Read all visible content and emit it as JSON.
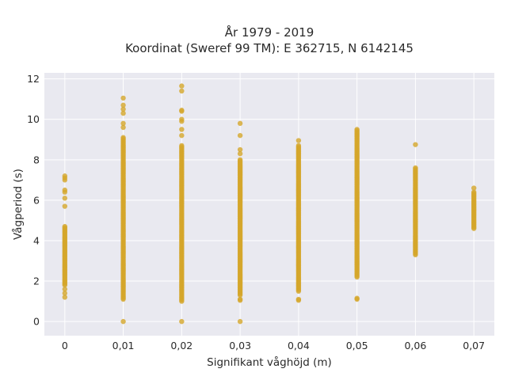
{
  "chart_data": {
    "type": "scatter",
    "title_line1": "År 1979 - 2019",
    "title_line2": "Koordinat (Sweref 99 TM): E 362715, N 6142145",
    "xlabel": "Signifikant våghöjd (m)",
    "ylabel": "Vågperiod (s)",
    "xlim": [
      -0.0035,
      0.0735
    ],
    "ylim": [
      -0.7,
      12.3
    ],
    "grid": true,
    "legend": "none",
    "marker_color": "#d4a62a",
    "plot_bg": "#e9e9f0",
    "x_ticks": [
      {
        "value": 0,
        "label": "0"
      },
      {
        "value": 0.01,
        "label": "0,01"
      },
      {
        "value": 0.02,
        "label": "0,02"
      },
      {
        "value": 0.03,
        "label": "0,03"
      },
      {
        "value": 0.04,
        "label": "0,04"
      },
      {
        "value": 0.05,
        "label": "0,05"
      },
      {
        "value": 0.06,
        "label": "0,06"
      },
      {
        "value": 0.07,
        "label": "0,07"
      }
    ],
    "y_ticks": [
      {
        "value": 0,
        "label": "0"
      },
      {
        "value": 2,
        "label": "2"
      },
      {
        "value": 4,
        "label": "4"
      },
      {
        "value": 6,
        "label": "6"
      },
      {
        "value": 8,
        "label": "8"
      },
      {
        "value": 10,
        "label": "10"
      },
      {
        "value": 12,
        "label": "12"
      }
    ],
    "series": [
      {
        "x": 0,
        "dense_min": 1.8,
        "dense_max": 4.7,
        "extra_y": [
          1.2,
          1.4,
          1.6,
          5.7,
          6.1,
          6.4,
          6.5,
          7.0,
          7.1,
          7.2
        ]
      },
      {
        "x": 0.01,
        "dense_min": 1.1,
        "dense_max": 9.1,
        "extra_y": [
          0.0,
          9.6,
          9.8,
          10.3,
          10.5,
          10.7,
          11.05
        ]
      },
      {
        "x": 0.02,
        "dense_min": 1.0,
        "dense_max": 8.7,
        "extra_y": [
          0.0,
          9.2,
          9.5,
          9.9,
          10.0,
          10.4,
          10.45,
          11.4,
          11.65
        ]
      },
      {
        "x": 0.03,
        "dense_min": 1.3,
        "dense_max": 8.0,
        "extra_y": [
          0.0,
          1.05,
          1.1,
          8.3,
          8.5,
          9.2,
          9.8
        ]
      },
      {
        "x": 0.04,
        "dense_min": 1.5,
        "dense_max": 8.7,
        "extra_y": [
          1.05,
          1.1,
          8.95
        ]
      },
      {
        "x": 0.05,
        "dense_min": 2.2,
        "dense_max": 9.5,
        "extra_y": [
          1.1,
          1.15
        ]
      },
      {
        "x": 0.06,
        "dense_min": 3.3,
        "dense_max": 7.6,
        "extra_y": [
          8.75
        ]
      },
      {
        "x": 0.07,
        "dense_min": 4.6,
        "dense_max": 6.4,
        "extra_y": [
          6.6
        ]
      }
    ]
  }
}
